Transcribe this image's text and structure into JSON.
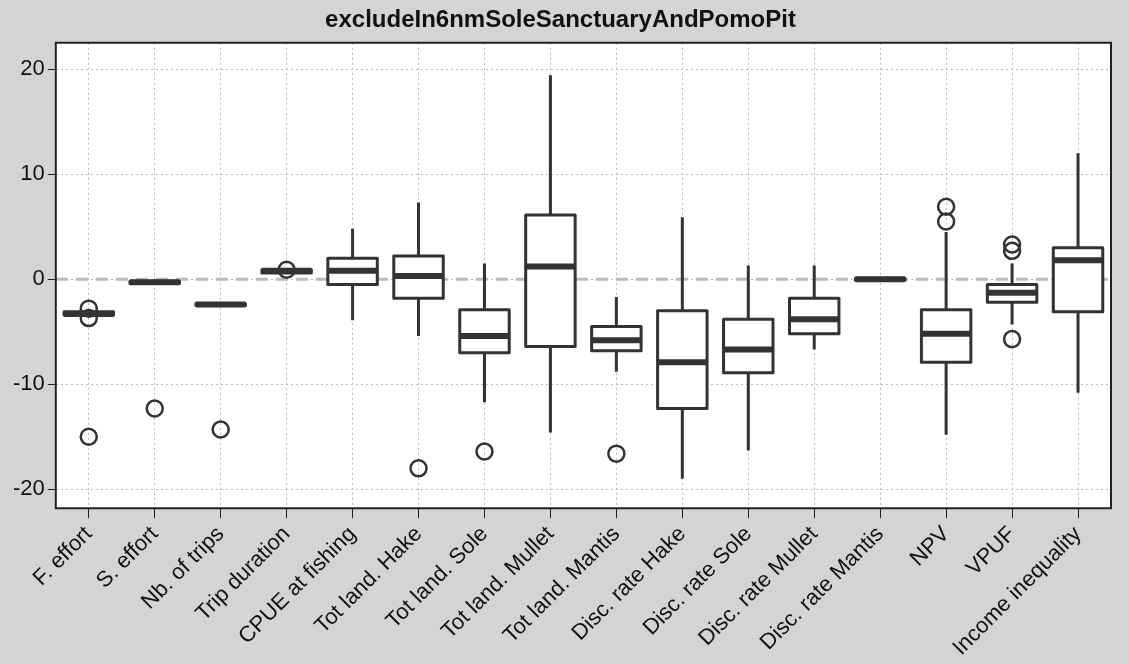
{
  "chart_data": {
    "type": "box",
    "title": "excludeIn6nmSoleSanctuaryAndPomoPit",
    "categories": [
      "F. effort",
      "S. effort",
      "Nb. of trips",
      "Trip duration",
      "CPUE at fishing",
      "Tot land. Hake",
      "Tot land. Sole",
      "Tot land. Mullet",
      "Tot land. Mantis",
      "Disc. rate Hake",
      "Disc. rate Sole",
      "Disc. rate Mullet",
      "Disc. rate Mantis",
      "NPV",
      "VPUF",
      "Income inequality"
    ],
    "boxes": [
      {
        "low": -3.5,
        "q1": -3.4,
        "median": -3.3,
        "q3": -3.1,
        "high": -3.0,
        "outliers": [
          -2.8,
          -3.7,
          -15
        ]
      },
      {
        "low": -0.5,
        "q1": -0.4,
        "median": -0.3,
        "q3": -0.2,
        "high": -0.1,
        "outliers": [
          -12.3
        ]
      },
      {
        "low": -2.6,
        "q1": -2.5,
        "median": -2.4,
        "q3": -2.3,
        "high": -2.2,
        "outliers": [
          -14.3
        ]
      },
      {
        "low": 0.5,
        "q1": 0.6,
        "median": 0.8,
        "q3": 0.9,
        "high": 1.0,
        "outliers": [
          0.9
        ]
      },
      {
        "low": -3.9,
        "q1": -0.5,
        "median": 0.8,
        "q3": 2.0,
        "high": 4.8
      },
      {
        "low": -5.4,
        "q1": -1.8,
        "median": 0.3,
        "q3": 2.2,
        "high": 7.3,
        "outliers": [
          -18
        ]
      },
      {
        "low": -11.7,
        "q1": -7.0,
        "median": -5.4,
        "q3": -2.9,
        "high": 1.5,
        "outliers": [
          -16.4
        ]
      },
      {
        "low": -14.6,
        "q1": -6.4,
        "median": 1.2,
        "q3": 6.1,
        "high": 19.4
      },
      {
        "low": -8.8,
        "q1": -6.8,
        "median": -5.8,
        "q3": -4.5,
        "high": -1.7,
        "outliers": [
          -16.6
        ]
      },
      {
        "low": -19.0,
        "q1": -12.3,
        "median": -7.9,
        "q3": -3.0,
        "high": 5.9
      },
      {
        "low": -16.3,
        "q1": -8.9,
        "median": -6.7,
        "q3": -3.8,
        "high": 1.3
      },
      {
        "low": -6.7,
        "q1": -5.2,
        "median": -3.8,
        "q3": -1.8,
        "high": 1.3
      },
      {
        "low": -0.2,
        "q1": -0.1,
        "median": 0,
        "q3": 0.1,
        "high": 0.2
      },
      {
        "low": -14.8,
        "q1": -7.9,
        "median": -5.2,
        "q3": -2.9,
        "high": 4.5,
        "outliers": [
          6.9,
          5.5
        ]
      },
      {
        "low": -4.3,
        "q1": -2.2,
        "median": -1.3,
        "q3": -0.5,
        "high": 1.5,
        "outliers": [
          3.3,
          2.7,
          -5.7
        ]
      },
      {
        "low": -10.8,
        "q1": -3.1,
        "median": 1.8,
        "q3": 3.0,
        "high": 12.0
      }
    ],
    "color": "#333333",
    "ylim": [
      -21.8,
      22.5
    ],
    "yticks": [
      -20,
      -10,
      0,
      10,
      20
    ],
    "ref_lines": [
      {
        "axis": "y",
        "value": 0,
        "color": "#bbbbbb",
        "line_style": "dashed"
      }
    ],
    "grid": true
  }
}
